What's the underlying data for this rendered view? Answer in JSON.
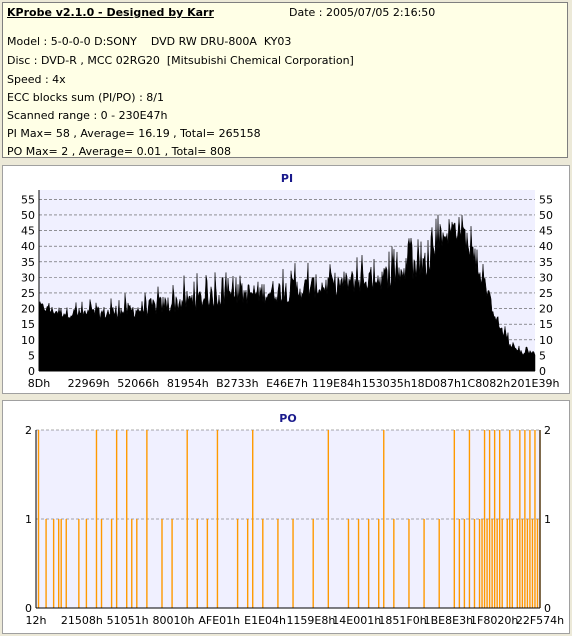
{
  "info": {
    "title": "KProbe v2.1.0 - Designed by Karr",
    "date": "Date : 2005/07/05 2:16:50",
    "lines": [
      "Model : 5-0-0-0 D:SONY    DVD RW DRU-800A  KY03",
      "Disc : DVD-R , MCC 02RG20  [Mitsubishi Chemical Corporation]",
      "Speed : 4x",
      "ECC blocks sum (PI/PO) : 8/1",
      "Scanned range : 0 - 230E47h",
      "PI Max= 58 , Average= 16.19 , Total= 265158",
      "PO Max= 2 , Average= 0.01 , Total= 808"
    ]
  },
  "chart_data": [
    {
      "type": "area",
      "title": "PI",
      "ylim": [
        0,
        58
      ],
      "y_ticks": [
        0,
        5,
        10,
        15,
        20,
        25,
        30,
        35,
        40,
        45,
        50,
        55
      ],
      "x_tick_labels": [
        "8Dh",
        "22969h",
        "52066h",
        "81954h",
        "B2733h",
        "E46E7h",
        "119E84h",
        "153035h",
        "18D087h",
        "1C8082h",
        "201E39h"
      ],
      "color": "#000000",
      "profile": {
        "x_fraction": [
          0,
          0.02,
          0.05,
          0.1,
          0.2,
          0.3,
          0.4,
          0.5,
          0.6,
          0.7,
          0.78,
          0.82,
          0.85,
          0.87,
          0.89,
          0.91,
          0.93,
          0.95,
          0.97,
          1.0
        ],
        "base": [
          20,
          18,
          17,
          16,
          17,
          19,
          21,
          22,
          24,
          26,
          30,
          40,
          42,
          35,
          28,
          20,
          12,
          7,
          5,
          5
        ],
        "peak": [
          24,
          23,
          23,
          23,
          26,
          31,
          33,
          35,
          37,
          40,
          45,
          55,
          58,
          48,
          37,
          28,
          18,
          11,
          8,
          8
        ]
      }
    },
    {
      "type": "bar",
      "title": "PO",
      "ylim": [
        0,
        2
      ],
      "y_ticks": [
        0,
        1,
        2
      ],
      "x_tick_labels": [
        "12h",
        "21508h",
        "51051h",
        "80010h",
        "AFE01h",
        "E1E04h",
        "1159E8h",
        "14E001h",
        "1851F0h",
        "1BE8E3h",
        "1F8020h",
        "22F574h"
      ],
      "color": "#ff9900",
      "events": {
        "x_fraction_value2": [
          0.005,
          0.12,
          0.16,
          0.18,
          0.22,
          0.3,
          0.36,
          0.43,
          0.58,
          0.69,
          0.83,
          0.86,
          0.89,
          0.9,
          0.91,
          0.92,
          0.94,
          0.96,
          0.97,
          0.98,
          0.99,
          1.0
        ],
        "x_fraction_value1": [
          0.02,
          0.035,
          0.045,
          0.05,
          0.06,
          0.085,
          0.1,
          0.13,
          0.15,
          0.19,
          0.2,
          0.25,
          0.27,
          0.32,
          0.34,
          0.4,
          0.42,
          0.45,
          0.48,
          0.51,
          0.55,
          0.62,
          0.64,
          0.66,
          0.68,
          0.71,
          0.74,
          0.77,
          0.8,
          0.84,
          0.85,
          0.87,
          0.88,
          0.885,
          0.895,
          0.905,
          0.915,
          0.925,
          0.935,
          0.945,
          0.955,
          0.965,
          0.975,
          0.985,
          0.995
        ]
      }
    }
  ]
}
